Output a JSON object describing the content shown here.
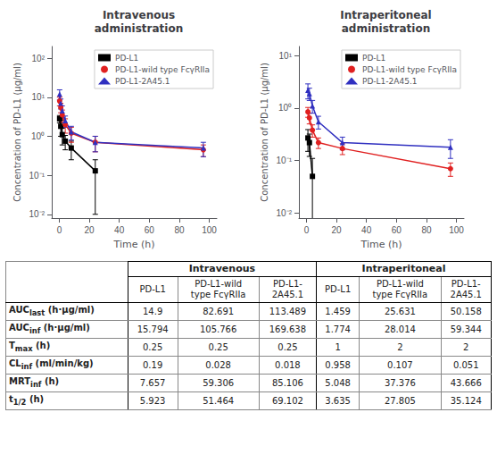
{
  "chart_data": [
    {
      "type": "line",
      "title": "Intravenous\nadministration",
      "xlabel": "Time (h)",
      "ylabel": "Concentration of PD-L1 (μg/ml)",
      "x": [
        0.25,
        1,
        2,
        4,
        8,
        24,
        96
      ],
      "series": [
        {
          "name": "PD-L1",
          "color": "#000000",
          "marker": "square",
          "values": [
            2.8,
            1.8,
            1.1,
            0.75,
            0.5,
            0.13,
            null
          ],
          "errors": [
            0.6,
            0.8,
            0.5,
            0.3,
            0.25,
            0.12,
            null
          ]
        },
        {
          "name": "PD-L1-wild type FcγRIIa",
          "color": "#e02020",
          "marker": "circle",
          "values": [
            8.0,
            5.5,
            3.5,
            2.0,
            1.2,
            0.7,
            0.45
          ],
          "errors": [
            2.0,
            1.5,
            1.2,
            0.8,
            0.5,
            0.3,
            0.15
          ]
        },
        {
          "name": "PD-L1-2A45.1",
          "color": "#3030c0",
          "marker": "triangle",
          "values": [
            12.0,
            7.0,
            4.5,
            2.5,
            1.3,
            0.7,
            0.5
          ],
          "errors": [
            3.5,
            2.0,
            1.5,
            0.8,
            0.5,
            0.3,
            0.2
          ]
        }
      ],
      "xlim": [
        -5,
        105
      ],
      "xticks": [
        0,
        20,
        40,
        60,
        80,
        100
      ],
      "ylim": [
        0.008,
        200
      ],
      "yticks": [
        {
          "value": 0.01,
          "label": "10⁻²"
        },
        {
          "value": 0.1,
          "label": "10⁻¹"
        },
        {
          "value": 1,
          "label": "10⁰"
        },
        {
          "value": 10,
          "label": "10¹"
        },
        {
          "value": 100,
          "label": "10²"
        }
      ],
      "log": "y",
      "grid": false,
      "legend": "upper right"
    },
    {
      "type": "line",
      "title": "Intraperitoneal\nadministration",
      "xlabel": "Time (h)",
      "ylabel": "Concentration of PD-L1 (μg/ml)",
      "x": [
        1,
        2,
        4,
        8,
        24,
        96
      ],
      "series": [
        {
          "name": "PD-L1",
          "color": "#000000",
          "marker": "square",
          "values": [
            0.27,
            0.22,
            0.05,
            null,
            null,
            null
          ],
          "errors": [
            0.12,
            0.1,
            0.06,
            null,
            null,
            null
          ]
        },
        {
          "name": "PD-L1-wild type FcγRIIa",
          "color": "#e02020",
          "marker": "circle",
          "values": [
            0.85,
            0.65,
            0.38,
            0.22,
            0.17,
            0.07
          ],
          "errors": [
            0.18,
            0.15,
            0.1,
            0.05,
            0.04,
            0.02
          ]
        },
        {
          "name": "PD-L1-2A45.1",
          "color": "#3030c0",
          "marker": "triangle",
          "values": [
            2.2,
            1.9,
            1.1,
            0.55,
            0.22,
            0.18
          ],
          "errors": [
            0.7,
            0.5,
            0.3,
            0.15,
            0.06,
            0.07
          ]
        }
      ],
      "xlim": [
        -5,
        105
      ],
      "xticks": [
        0,
        20,
        40,
        60,
        80,
        100
      ],
      "ylim": [
        0.008,
        15
      ],
      "yticks": [
        {
          "value": 0.01,
          "label": "10⁻²"
        },
        {
          "value": 0.1,
          "label": "10⁻¹"
        },
        {
          "value": 1,
          "label": "10⁰"
        },
        {
          "value": 10,
          "label": "10¹"
        }
      ],
      "log": "y",
      "grid": false,
      "legend": "upper right"
    },
    {
      "type": "table",
      "column_groups": [
        {
          "title": "Intravenous",
          "columns": [
            "PD-L1",
            "PD-L1-wild\ntype FcγRIIa",
            "PD-L1-\n2A45.1"
          ]
        },
        {
          "title": "Intraperitoneal",
          "columns": [
            "PD-L1",
            "PD-L1-wild\ntype FcγRIIa",
            "PD-L1-\n2A45.1"
          ]
        }
      ],
      "row_labels": [
        {
          "text": "AUC",
          "subscript": "last",
          "unit": "(h·μg/ml)"
        },
        {
          "text": "AUC",
          "subscript": "inf",
          "unit": "(h·μg/ml)"
        },
        {
          "text": "T",
          "subscript": "max",
          "unit": "(h)"
        },
        {
          "text": "CL",
          "subscript": "inf",
          "unit": "(ml/min/kg)"
        },
        {
          "text": "MRT",
          "subscript": "inf",
          "unit": "(h)"
        },
        {
          "text": "t",
          "subscript": "1/2",
          "unit": "(h)"
        }
      ],
      "rows": [
        [
          "14.9",
          "82.691",
          "113.489",
          "1.459",
          "25.631",
          "50.158"
        ],
        [
          "15.794",
          "105.766",
          "169.638",
          "1.774",
          "28.014",
          "59.344"
        ],
        [
          "0.25",
          "0.25",
          "0.25",
          "1",
          "2",
          "2"
        ],
        [
          "0.19",
          "0.028",
          "0.018",
          "0.958",
          "0.107",
          "0.051"
        ],
        [
          "7.657",
          "59.306",
          "85.106",
          "5.048",
          "37.376",
          "43.666"
        ],
        [
          "5.923",
          "51.464",
          "69.102",
          "3.635",
          "27.805",
          "35.124"
        ]
      ]
    }
  ]
}
